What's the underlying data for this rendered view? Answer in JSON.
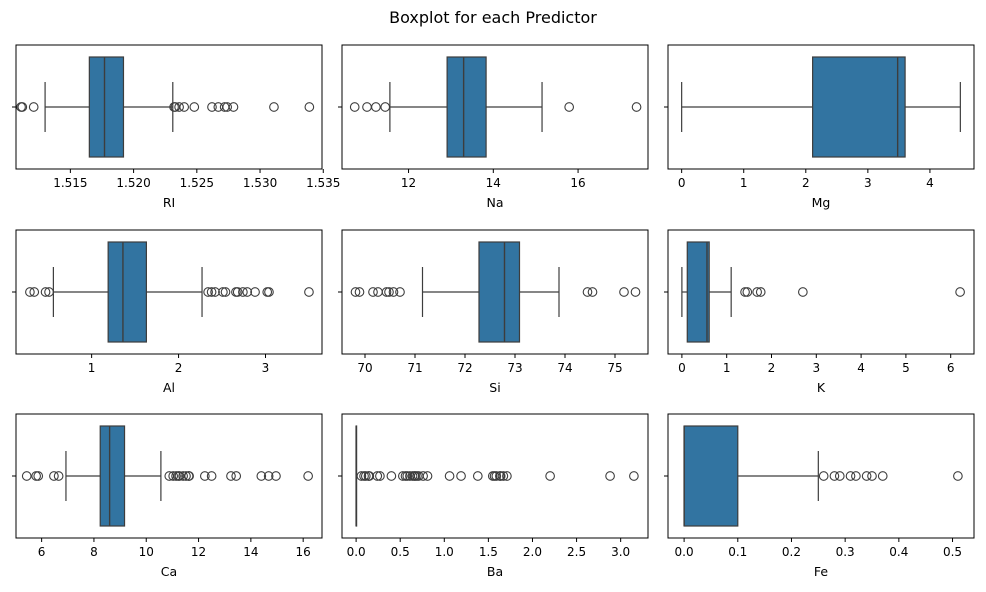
{
  "title": "Boxplot for each Predictor",
  "colors": {
    "box": "#3274a1",
    "line": "#3d3d3d",
    "frame": "#000000"
  },
  "chart_data": [
    {
      "type": "boxplot",
      "xlabel": "RI",
      "xlim": [
        1.5107,
        1.5349
      ],
      "ticks": [
        1.515,
        1.52,
        1.525,
        1.53,
        1.535
      ],
      "tick_labels": [
        "1.515",
        "1.520",
        "1.525",
        "1.530",
        "1.535"
      ],
      "whisker_low": 1.513,
      "q1": 1.5165,
      "median": 1.5177,
      "q3": 1.5192,
      "whisker_high": 1.5231,
      "outliers": [
        1.5111,
        1.5112,
        1.5121,
        1.5232,
        1.5233,
        1.5236,
        1.524,
        1.5248,
        1.5262,
        1.5267,
        1.5272,
        1.5274,
        1.5279,
        1.5311,
        1.5339
      ]
    },
    {
      "type": "boxplot",
      "xlabel": "Na",
      "xlim": [
        10.43,
        17.65
      ],
      "ticks": [
        12,
        14,
        16
      ],
      "tick_labels": [
        "12",
        "14",
        "16"
      ],
      "whisker_low": 11.56,
      "q1": 12.91,
      "median": 13.3,
      "q3": 13.83,
      "whisker_high": 15.15,
      "outliers": [
        10.73,
        11.02,
        11.23,
        11.45,
        15.79,
        17.38
      ]
    },
    {
      "type": "boxplot",
      "xlabel": "Mg",
      "xlim": [
        -0.22,
        4.71
      ],
      "ticks": [
        0,
        1,
        2,
        3,
        4
      ],
      "tick_labels": [
        "0",
        "1",
        "2",
        "3",
        "4"
      ],
      "whisker_low": 0.0,
      "q1": 2.11,
      "median": 3.48,
      "q3": 3.6,
      "whisker_high": 4.49,
      "outliers": []
    },
    {
      "type": "boxplot",
      "xlabel": "Al",
      "xlim": [
        0.13,
        3.65
      ],
      "ticks": [
        1,
        2,
        3
      ],
      "tick_labels": [
        "1",
        "2",
        "3"
      ],
      "whisker_low": 0.56,
      "q1": 1.19,
      "median": 1.36,
      "q3": 1.63,
      "whisker_high": 2.27,
      "outliers": [
        0.29,
        0.34,
        0.47,
        0.51,
        2.34,
        2.38,
        2.42,
        2.51,
        2.54,
        2.66,
        2.68,
        2.74,
        2.79,
        2.88,
        3.02,
        3.04,
        3.5
      ]
    },
    {
      "type": "boxplot",
      "xlabel": "Si",
      "xlim": [
        69.54,
        75.66
      ],
      "ticks": [
        70,
        71,
        72,
        73,
        74,
        75
      ],
      "tick_labels": [
        "70",
        "71",
        "72",
        "73",
        "74",
        "75"
      ],
      "whisker_low": 71.15,
      "q1": 72.28,
      "median": 72.79,
      "q3": 73.09,
      "whisker_high": 73.88,
      "outliers": [
        69.81,
        69.89,
        70.16,
        70.26,
        70.43,
        70.48,
        70.57,
        70.7,
        74.45,
        74.55,
        75.18,
        75.41
      ]
    },
    {
      "type": "boxplot",
      "xlabel": "K",
      "xlim": [
        -0.31,
        6.52
      ],
      "ticks": [
        0,
        1,
        2,
        3,
        4,
        5,
        6
      ],
      "tick_labels": [
        "0",
        "1",
        "2",
        "3",
        "4",
        "5",
        "6"
      ],
      "whisker_low": 0.0,
      "q1": 0.12,
      "median": 0.56,
      "q3": 0.61,
      "whisker_high": 1.1,
      "outliers": [
        1.41,
        1.46,
        1.68,
        1.76,
        2.7,
        6.21
      ]
    },
    {
      "type": "boxplot",
      "xlabel": "Ca",
      "xlim": [
        5.02,
        16.72
      ],
      "ticks": [
        6,
        8,
        10,
        12,
        14,
        16
      ],
      "tick_labels": [
        "6",
        "8",
        "10",
        "12",
        "14",
        "16"
      ],
      "whisker_low": 6.93,
      "q1": 8.24,
      "median": 8.6,
      "q3": 9.17,
      "whisker_high": 10.56,
      "outliers": [
        5.43,
        5.79,
        5.87,
        6.47,
        6.65,
        10.88,
        11.03,
        11.14,
        11.22,
        11.27,
        11.41,
        11.52,
        11.62,
        11.64,
        12.24,
        12.5,
        13.24,
        13.44,
        14.4,
        14.68,
        14.96,
        16.19
      ]
    },
    {
      "type": "boxplot",
      "xlabel": "Ba",
      "xlim": [
        -0.16,
        3.31
      ],
      "ticks": [
        0.0,
        0.5,
        1.0,
        1.5,
        2.0,
        2.5,
        3.0
      ],
      "tick_labels": [
        "0.0",
        "0.5",
        "1.0",
        "1.5",
        "2.0",
        "2.5",
        "3.0"
      ],
      "whisker_low": 0.0,
      "q1": 0.0,
      "median": 0.0,
      "q3": 0.0,
      "whisker_high": 0.0,
      "outliers": [
        0.06,
        0.09,
        0.11,
        0.14,
        0.15,
        0.24,
        0.27,
        0.4,
        0.53,
        0.56,
        0.58,
        0.61,
        0.64,
        0.66,
        0.67,
        0.69,
        0.71,
        0.76,
        0.81,
        1.06,
        1.19,
        1.38,
        1.55,
        1.57,
        1.59,
        1.63,
        1.64,
        1.67,
        1.71,
        2.2,
        2.88,
        3.15
      ]
    },
    {
      "type": "boxplot",
      "xlabel": "Fe",
      "xlim": [
        -0.03,
        0.54
      ],
      "ticks": [
        0.0,
        0.1,
        0.2,
        0.3,
        0.4,
        0.5
      ],
      "tick_labels": [
        "0.0",
        "0.1",
        "0.2",
        "0.3",
        "0.4",
        "0.5"
      ],
      "whisker_low": 0.0,
      "q1": 0.0,
      "median": 0.0,
      "q3": 0.1,
      "whisker_high": 0.25,
      "outliers": [
        0.26,
        0.28,
        0.29,
        0.31,
        0.32,
        0.34,
        0.35,
        0.37,
        0.51
      ]
    }
  ]
}
